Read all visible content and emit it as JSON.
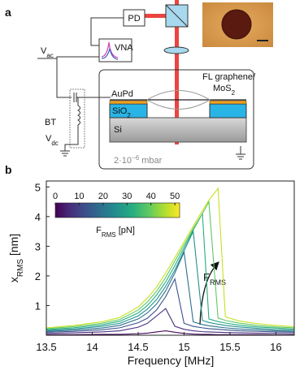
{
  "diagram": {
    "panel_label": "a",
    "pd": "PD",
    "vna": "VNA",
    "vac": {
      "main": "V",
      "sub": "ac"
    },
    "bt": "BT",
    "vdc": {
      "main": "V",
      "sub": "dc"
    },
    "aupd": "AuPd",
    "sio2": {
      "main": "SiO",
      "sub": "2"
    },
    "si": "Si",
    "membrane": {
      "line1": "FL graphene/",
      "line2_main": "MoS",
      "line2_sub": "2"
    },
    "pressure": {
      "main": "2·10",
      "sup": "−6",
      "unit": " mbar"
    }
  },
  "chart_data": {
    "panel_label": "b",
    "type": "line",
    "xlabel": "Frequency [MHz]",
    "ylabel": {
      "main": "x",
      "sub": "RMS",
      "unit": " [nm]"
    },
    "x": [
      13.5,
      13.8,
      14.1,
      14.3,
      14.5,
      14.6,
      14.7,
      14.8,
      14.9,
      15.0,
      15.1,
      15.2,
      15.27,
      15.37,
      15.45,
      15.6,
      15.8,
      16.0,
      16.2
    ],
    "xlim": [
      13.5,
      16.2
    ],
    "xticks": [
      13.5,
      14,
      14.5,
      15,
      15.5,
      16
    ],
    "ylim": [
      0,
      5.2
    ],
    "yticks": [
      1,
      2,
      3,
      4,
      5
    ],
    "series": [
      {
        "color": "#46085c",
        "values": [
          0.02,
          0.02,
          0.03,
          0.03,
          0.05,
          0.07,
          0.11,
          0.15,
          0.1,
          0.06,
          0.04,
          0.03,
          0.03,
          0.02,
          0.02,
          0.02,
          0.02,
          0.01,
          0.01
        ]
      },
      {
        "color": "#472f7d",
        "values": [
          0.06,
          0.08,
          0.11,
          0.15,
          0.27,
          0.4,
          0.65,
          0.9,
          0.3,
          0.2,
          0.15,
          0.12,
          0.11,
          0.1,
          0.09,
          0.08,
          0.07,
          0.06,
          0.05
        ]
      },
      {
        "color": "#3b518b",
        "values": [
          0.1,
          0.13,
          0.18,
          0.25,
          0.42,
          0.57,
          0.85,
          1.3,
          1.9,
          0.4,
          0.3,
          0.25,
          0.22,
          0.2,
          0.18,
          0.15,
          0.13,
          0.11,
          0.1
        ]
      },
      {
        "color": "#2c718e",
        "values": [
          0.13,
          0.17,
          0.24,
          0.33,
          0.55,
          0.75,
          1.05,
          1.5,
          2.1,
          2.8,
          0.45,
          0.36,
          0.32,
          0.28,
          0.25,
          0.21,
          0.18,
          0.15,
          0.13
        ]
      },
      {
        "color": "#21918c",
        "values": [
          0.16,
          0.21,
          0.3,
          0.4,
          0.65,
          0.88,
          1.2,
          1.65,
          2.2,
          2.85,
          3.5,
          0.5,
          0.43,
          0.37,
          0.33,
          0.28,
          0.23,
          0.19,
          0.17
        ]
      },
      {
        "color": "#27ad81",
        "values": [
          0.19,
          0.25,
          0.35,
          0.47,
          0.75,
          1.0,
          1.35,
          1.8,
          2.35,
          2.95,
          3.55,
          4.1,
          0.55,
          0.46,
          0.41,
          0.34,
          0.28,
          0.24,
          0.21
        ]
      },
      {
        "color": "#5ec962",
        "values": [
          0.22,
          0.29,
          0.4,
          0.53,
          0.85,
          1.12,
          1.48,
          1.95,
          2.5,
          3.05,
          3.6,
          4.1,
          4.5,
          0.58,
          0.5,
          0.41,
          0.33,
          0.28,
          0.25
        ]
      },
      {
        "color": "#c8e020",
        "values": [
          0.25,
          0.33,
          0.45,
          0.6,
          0.95,
          1.25,
          1.62,
          2.1,
          2.62,
          3.15,
          3.68,
          4.2,
          4.55,
          4.95,
          0.62,
          0.48,
          0.39,
          0.33,
          0.29
        ]
      }
    ],
    "colorbar": {
      "label": {
        "main": "F",
        "sub": "RMS",
        "unit": " [pN]"
      },
      "lim": [
        0,
        52
      ],
      "ticks": [
        0,
        10,
        20,
        30,
        40,
        50
      ],
      "colors": [
        "#440154",
        "#472f7d",
        "#3b528b",
        "#2c728e",
        "#21918c",
        "#28ae80",
        "#5ec962",
        "#addc30",
        "#fde725"
      ]
    },
    "annotation": {
      "main": "F",
      "sub": "RMS"
    }
  }
}
